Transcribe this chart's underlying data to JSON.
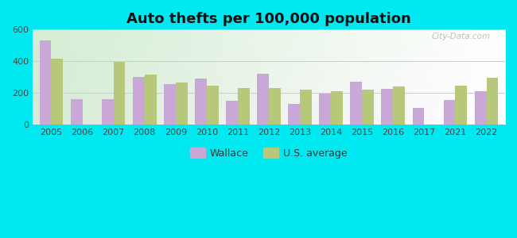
{
  "title": "Auto thefts per 100,000 population",
  "years": [
    2005,
    2006,
    2007,
    2008,
    2009,
    2010,
    2011,
    2012,
    2013,
    2014,
    2015,
    2016,
    2017,
    2021,
    2022
  ],
  "wallace": [
    530,
    160,
    160,
    300,
    255,
    290,
    150,
    320,
    130,
    195,
    270,
    225,
    105,
    155,
    210
  ],
  "us_avg": [
    415,
    0,
    395,
    315,
    265,
    245,
    230,
    230,
    220,
    210,
    220,
    240,
    0,
    245,
    295
  ],
  "wallace_color": "#c9a8d8",
  "us_avg_color": "#b8c87a",
  "outer_bg": "#00e8f0",
  "ylim": [
    0,
    600
  ],
  "yticks": [
    0,
    200,
    400,
    600
  ],
  "bar_width": 0.38,
  "legend_labels": [
    "Wallace",
    "U.S. average"
  ],
  "watermark": "City-Data.com",
  "title_fontsize": 13,
  "tick_fontsize": 8,
  "grid_color": "#dddddd",
  "gradient_colors": [
    "#c8e6c0",
    "#f0faf0",
    "#ffffff"
  ],
  "horizontal_line_color": "#cccccc"
}
